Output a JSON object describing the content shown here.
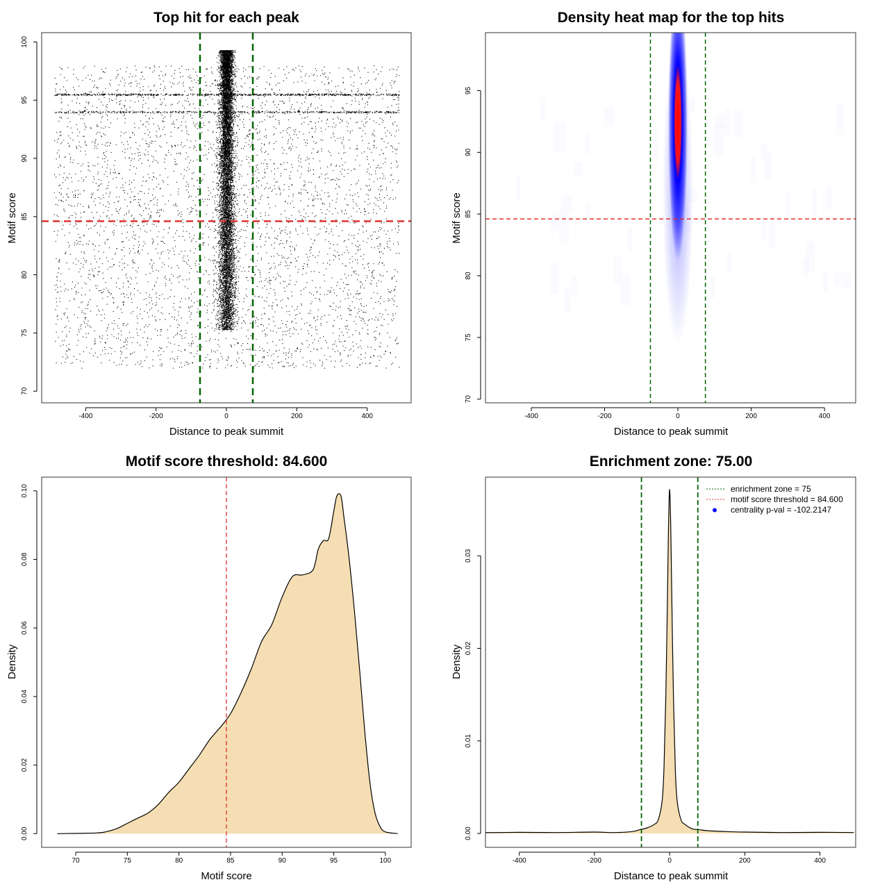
{
  "chart_data": [
    {
      "type": "scatter",
      "title": "Top hit for each peak",
      "xlabel": "Distance to peak summit",
      "ylabel": "Motif score",
      "xlim": [
        -525,
        525
      ],
      "ylim": [
        69,
        100.8
      ],
      "xticks": [
        -400,
        -200,
        0,
        200,
        400
      ],
      "yticks": [
        70,
        75,
        80,
        85,
        90,
        95,
        100
      ],
      "vlines": [
        -75,
        75
      ],
      "hline": 84.6,
      "points_description": "dense central band near 0 (scores ~75-99.5), sparse uniform background across -490 to 490 (scores ~72-98), horizontal streaks at ~95.5 and ~94",
      "colors": {
        "points": "#000000",
        "vline": "#006400",
        "hline": "#e03030"
      }
    },
    {
      "type": "heatmap",
      "title": "Density heat map for the top hits",
      "xlabel": "Distance to peak summit",
      "ylabel": "Motif score",
      "xlim": [
        -525,
        485
      ],
      "ylim": [
        69.7,
        99.7
      ],
      "xticks": [
        -400,
        -200,
        0,
        200,
        400
      ],
      "yticks": [
        70,
        75,
        80,
        85,
        90,
        95
      ],
      "vlines": [
        -75,
        75
      ],
      "hline": 84.6,
      "hotspot": {
        "x": 0,
        "y_from": 75,
        "y_to": 98.5,
        "peak_y": 93
      },
      "colors": {
        "low": "#ffffff",
        "mid": "#0000ff",
        "high": "#ff0000",
        "vline": "#006400",
        "hline": "#e03030"
      }
    },
    {
      "type": "area",
      "title": "Motif score threshold: 84.600",
      "xlabel": "Motif score",
      "ylabel": "Density",
      "xlim": [
        66.7,
        102.5
      ],
      "ylim": [
        -0.004,
        0.104
      ],
      "xticks": [
        70,
        75,
        80,
        85,
        90,
        95,
        100
      ],
      "yticks": [
        0.0,
        0.02,
        0.04,
        0.06,
        0.08,
        0.1
      ],
      "vline": 84.6,
      "x": [
        68.2,
        72,
        73,
        74,
        75,
        76,
        77,
        78,
        79,
        80,
        81,
        82,
        83,
        84,
        85,
        86,
        87,
        88,
        89,
        90,
        91,
        92,
        93,
        93.5,
        94,
        94.5,
        95,
        95.3,
        95.7,
        96,
        96.5,
        97,
        97.5,
        98,
        98.5,
        99,
        99.5,
        100,
        101.2
      ],
      "values": [
        0,
        0.0002,
        0.0006,
        0.0015,
        0.003,
        0.0045,
        0.006,
        0.0085,
        0.012,
        0.015,
        0.019,
        0.023,
        0.0275,
        0.031,
        0.035,
        0.041,
        0.048,
        0.056,
        0.061,
        0.069,
        0.075,
        0.0755,
        0.077,
        0.083,
        0.0855,
        0.086,
        0.094,
        0.0985,
        0.0985,
        0.092,
        0.08,
        0.065,
        0.048,
        0.03,
        0.015,
        0.006,
        0.002,
        0.0005,
        0
      ],
      "colors": {
        "fill": "#f5deb3",
        "line": "#000000",
        "vline": "#e03030"
      }
    },
    {
      "type": "area",
      "title": "Enrichment zone: 75.00",
      "xlabel": "Distance to peak summit",
      "ylabel": "Density",
      "xlim": [
        -490,
        495
      ],
      "ylim": [
        -0.0015,
        0.0385
      ],
      "xticks": [
        -400,
        -200,
        0,
        200,
        400
      ],
      "yticks": [
        0.0,
        0.01,
        0.02,
        0.03
      ],
      "vlines": [
        -75,
        75
      ],
      "x": [
        -490,
        -400,
        -300,
        -200,
        -150,
        -100,
        -80,
        -60,
        -40,
        -30,
        -20,
        -15,
        -10,
        -6,
        -3,
        0,
        3,
        6,
        10,
        15,
        20,
        30,
        40,
        60,
        80,
        100,
        150,
        200,
        300,
        400,
        490
      ],
      "values": [
        8e-05,
        0.00012,
        0.0001,
        0.00015,
        0.0001,
        0.0002,
        0.0004,
        0.0006,
        0.001,
        0.0015,
        0.0035,
        0.007,
        0.015,
        0.025,
        0.033,
        0.0372,
        0.033,
        0.025,
        0.015,
        0.007,
        0.0035,
        0.0015,
        0.001,
        0.0005,
        0.0004,
        0.0003,
        0.0002,
        0.00015,
        0.0001,
        0.00012,
        0.0001
      ],
      "legend": [
        {
          "label": "enrichment zone = 75",
          "style": "dotted",
          "color": "#006400"
        },
        {
          "label": "motif score threshold = 84.600",
          "style": "dotted",
          "color": "#e03030"
        },
        {
          "label": "centrality p-val = -102.2147",
          "style": "point",
          "color": "#0000ff"
        }
      ],
      "legend_position": "top-right",
      "colors": {
        "fill": "#f5deb3",
        "line": "#000000",
        "vline": "#006400"
      }
    }
  ]
}
